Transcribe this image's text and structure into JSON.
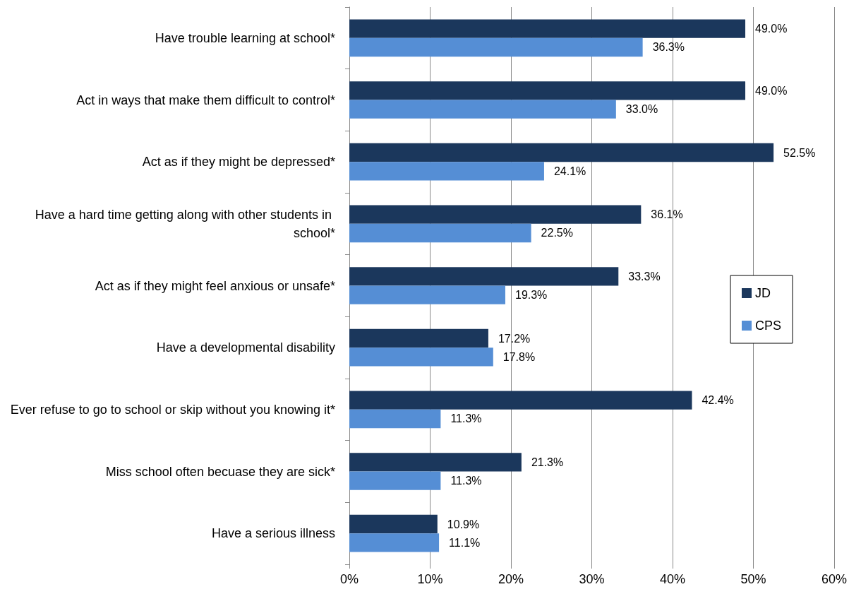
{
  "chart_data": {
    "type": "bar",
    "orientation": "horizontal",
    "categories": [
      "Have trouble learning at school*",
      "Act in ways that make them difficult to control*",
      "Act as if they might be depressed*",
      "Have a hard time getting along with other students in school*",
      "Act as if they might feel anxious or unsafe*",
      "Have a developmental disability",
      "Ever refuse to go to school or skip without you knowing it*",
      "Miss school often becuase they are sick*",
      "Have a serious illness"
    ],
    "series": [
      {
        "name": "JD",
        "color": "#1b375c",
        "values": [
          49.0,
          49.0,
          52.5,
          36.1,
          33.3,
          17.2,
          42.4,
          21.3,
          10.9
        ],
        "value_labels": [
          "49.0%",
          "49.0%",
          "52.5%",
          "36.1%",
          "33.3%",
          "17.2%",
          "42.4%",
          "21.3%",
          "10.9%"
        ]
      },
      {
        "name": "CPS",
        "color": "#558ed5",
        "values": [
          36.3,
          33.0,
          24.1,
          22.5,
          19.3,
          17.8,
          11.3,
          11.3,
          11.1
        ],
        "value_labels": [
          "36.3%",
          "33.0%",
          "24.1%",
          "22.5%",
          "19.3%",
          "17.8%",
          "11.3%",
          "11.3%",
          "11.1%"
        ]
      }
    ],
    "xlim": [
      0,
      60
    ],
    "xticks": [
      {
        "value": 0,
        "label": "0%"
      },
      {
        "value": 10,
        "label": "10%"
      },
      {
        "value": 20,
        "label": "20%"
      },
      {
        "value": 30,
        "label": "30%"
      },
      {
        "value": 40,
        "label": "40%"
      },
      {
        "value": 50,
        "label": "50%"
      },
      {
        "value": 60,
        "label": "60%"
      }
    ],
    "grid": "x",
    "legend": "right"
  }
}
